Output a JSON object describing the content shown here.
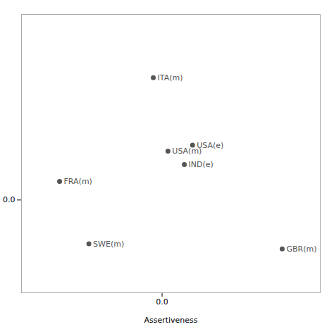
{
  "chart_data": {
    "type": "scatter",
    "xlabel": "Assertiveness",
    "x": [
      -0.15,
      0.1,
      0.52,
      0.38,
      -1.75,
      -1.25,
      2.05
    ],
    "values": [
      1.45,
      0.58,
      0.65,
      0.42,
      0.22,
      -0.52,
      -0.58
    ],
    "labels": [
      "ITA(m)",
      "USA(m)",
      "USA(e)",
      "IND(e)",
      "FRA(m)",
      "SWE(m)",
      "GBR(m)"
    ],
    "color": "#555555",
    "xlim": [
      -2.4,
      2.7
    ],
    "ylim": [
      -1.1,
      2.2
    ],
    "xticks": [
      0
    ],
    "yticks": [
      0
    ],
    "grid": false
  }
}
